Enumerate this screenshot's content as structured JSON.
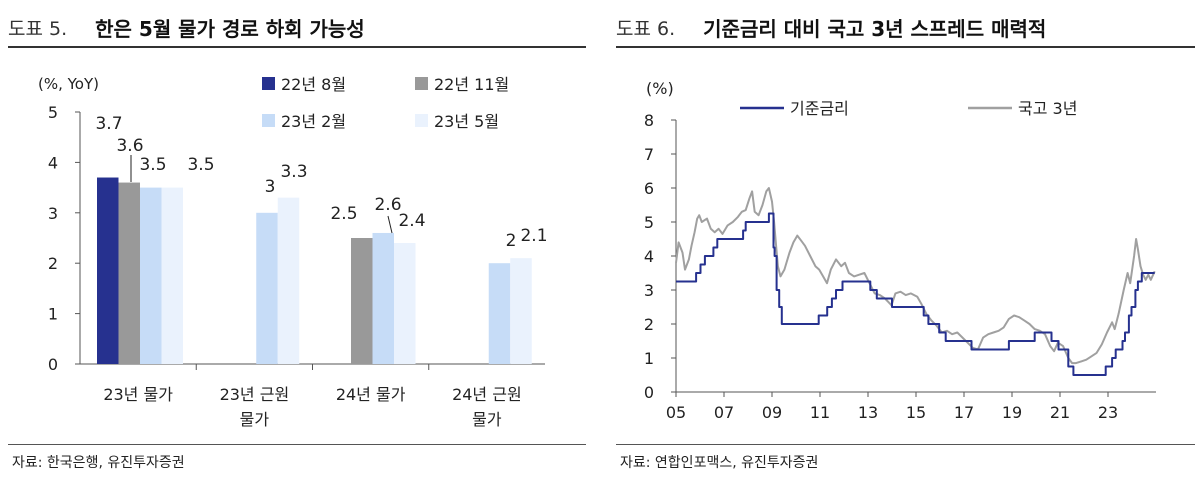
{
  "left": {
    "fig_num": "도표 5.",
    "title": "한은 5월 물가 경로 하회 가능성",
    "source": "자료: 한국은행, 유진투자증권"
  },
  "right": {
    "fig_num": "도표 6.",
    "title": "기준금리 대비 국고 3년 스프레드 매력적",
    "source": "자료: 연합인포맥스, 유진투자증권"
  },
  "chart_data": [
    {
      "type": "bar",
      "unit_label": "(%, YoY)",
      "categories": [
        [
          "23년 물가"
        ],
        [
          "23년 근원",
          "물가"
        ],
        [
          "24년 물가"
        ],
        [
          "24년 근원",
          "물가"
        ]
      ],
      "series": [
        {
          "name": "22년 8월",
          "color": "#26318f",
          "values": [
            3.7,
            null,
            null,
            null
          ],
          "labels": [
            "3.7",
            null,
            null,
            null
          ]
        },
        {
          "name": "22년 11월",
          "color": "#999999",
          "values": [
            3.6,
            null,
            2.5,
            null
          ],
          "labels": [
            "3.6",
            null,
            "2.5",
            null
          ]
        },
        {
          "name": "23년 2월",
          "color": "#c6dcf7",
          "values": [
            3.5,
            3.0,
            2.6,
            2.0
          ],
          "labels": [
            "3.5",
            "3",
            "2.6",
            "2"
          ]
        },
        {
          "name": "23년 5월",
          "color": "#eaf2fd",
          "values": [
            3.5,
            3.3,
            2.4,
            2.1
          ],
          "labels": [
            "3.5",
            "3.3",
            "2.4",
            "2.1"
          ]
        }
      ],
      "ylim": [
        0,
        5
      ],
      "yticks": [
        "0",
        "1",
        "2",
        "3",
        "4",
        "5"
      ],
      "legend_position": "top-right",
      "grid": false
    },
    {
      "type": "line",
      "unit_label": "(%)",
      "ylim": [
        0,
        8
      ],
      "yticks": [
        "0",
        "1",
        "2",
        "3",
        "4",
        "5",
        "6",
        "7",
        "8"
      ],
      "xlim": [
        2005,
        2023.6
      ],
      "xticks": [
        "05",
        "07",
        "09",
        "11",
        "13",
        "15",
        "17",
        "19",
        "21",
        "23"
      ],
      "legend_position": "top-left",
      "grid": false,
      "series": [
        {
          "name": "기준금리",
          "color": "#26318f",
          "points": [
            [
              2005.0,
              3.25
            ],
            [
              2005.78,
              3.25
            ],
            [
              2005.78,
              3.5
            ],
            [
              2005.95,
              3.5
            ],
            [
              2005.95,
              3.75
            ],
            [
              2006.12,
              3.75
            ],
            [
              2006.12,
              4.0
            ],
            [
              2006.45,
              4.0
            ],
            [
              2006.45,
              4.25
            ],
            [
              2006.6,
              4.25
            ],
            [
              2006.6,
              4.5
            ],
            [
              2007.6,
              4.5
            ],
            [
              2007.6,
              4.75
            ],
            [
              2007.7,
              4.75
            ],
            [
              2007.7,
              5.0
            ],
            [
              2008.6,
              5.0
            ],
            [
              2008.6,
              5.25
            ],
            [
              2008.78,
              5.25
            ],
            [
              2008.78,
              4.25
            ],
            [
              2008.82,
              4.25
            ],
            [
              2008.82,
              4.0
            ],
            [
              2008.9,
              4.0
            ],
            [
              2008.9,
              3.0
            ],
            [
              2009.0,
              3.0
            ],
            [
              2009.0,
              2.5
            ],
            [
              2009.1,
              2.5
            ],
            [
              2009.1,
              2.0
            ],
            [
              2010.53,
              2.0
            ],
            [
              2010.53,
              2.25
            ],
            [
              2010.86,
              2.25
            ],
            [
              2010.86,
              2.5
            ],
            [
              2011.04,
              2.5
            ],
            [
              2011.04,
              2.75
            ],
            [
              2011.2,
              2.75
            ],
            [
              2011.2,
              3.0
            ],
            [
              2011.45,
              3.0
            ],
            [
              2011.45,
              3.25
            ],
            [
              2012.53,
              3.25
            ],
            [
              2012.53,
              3.0
            ],
            [
              2012.78,
              3.0
            ],
            [
              2012.78,
              2.75
            ],
            [
              2013.37,
              2.75
            ],
            [
              2013.37,
              2.5
            ],
            [
              2014.6,
              2.5
            ],
            [
              2014.6,
              2.25
            ],
            [
              2014.78,
              2.25
            ],
            [
              2014.78,
              2.0
            ],
            [
              2015.2,
              2.0
            ],
            [
              2015.2,
              1.75
            ],
            [
              2015.45,
              1.75
            ],
            [
              2015.45,
              1.5
            ],
            [
              2016.45,
              1.5
            ],
            [
              2016.45,
              1.25
            ],
            [
              2017.9,
              1.25
            ],
            [
              2017.9,
              1.5
            ],
            [
              2018.9,
              1.5
            ],
            [
              2018.9,
              1.75
            ],
            [
              2019.55,
              1.75
            ],
            [
              2019.55,
              1.5
            ],
            [
              2019.82,
              1.5
            ],
            [
              2019.82,
              1.25
            ],
            [
              2020.2,
              1.25
            ],
            [
              2020.2,
              0.75
            ],
            [
              2020.4,
              0.75
            ],
            [
              2020.4,
              0.5
            ],
            [
              2021.65,
              0.5
            ],
            [
              2021.65,
              0.75
            ],
            [
              2021.9,
              0.75
            ],
            [
              2021.9,
              1.0
            ],
            [
              2022.04,
              1.0
            ],
            [
              2022.04,
              1.25
            ],
            [
              2022.3,
              1.25
            ],
            [
              2022.3,
              1.5
            ],
            [
              2022.4,
              1.5
            ],
            [
              2022.4,
              1.75
            ],
            [
              2022.55,
              1.75
            ],
            [
              2022.55,
              2.25
            ],
            [
              2022.65,
              2.25
            ],
            [
              2022.65,
              2.5
            ],
            [
              2022.8,
              2.5
            ],
            [
              2022.8,
              3.0
            ],
            [
              2022.9,
              3.0
            ],
            [
              2022.9,
              3.25
            ],
            [
              2023.05,
              3.25
            ],
            [
              2023.05,
              3.5
            ],
            [
              2023.55,
              3.5
            ]
          ]
        },
        {
          "name": "국고 3년",
          "color": "#a0a0a0",
          "points": [
            [
              2005.0,
              3.8
            ],
            [
              2005.1,
              4.4
            ],
            [
              2005.25,
              4.1
            ],
            [
              2005.35,
              3.6
            ],
            [
              2005.5,
              3.9
            ],
            [
              2005.6,
              4.3
            ],
            [
              2005.72,
              4.7
            ],
            [
              2005.82,
              5.1
            ],
            [
              2005.9,
              5.2
            ],
            [
              2006.0,
              5.0
            ],
            [
              2006.2,
              5.1
            ],
            [
              2006.35,
              4.8
            ],
            [
              2006.5,
              4.7
            ],
            [
              2006.65,
              4.8
            ],
            [
              2006.8,
              4.65
            ],
            [
              2007.0,
              4.9
            ],
            [
              2007.2,
              5.0
            ],
            [
              2007.4,
              5.15
            ],
            [
              2007.55,
              5.3
            ],
            [
              2007.7,
              5.35
            ],
            [
              2007.85,
              5.7
            ],
            [
              2007.95,
              5.9
            ],
            [
              2008.05,
              5.3
            ],
            [
              2008.2,
              5.2
            ],
            [
              2008.35,
              5.5
            ],
            [
              2008.5,
              5.9
            ],
            [
              2008.6,
              6.0
            ],
            [
              2008.72,
              5.6
            ],
            [
              2008.8,
              5.0
            ],
            [
              2008.88,
              4.3
            ],
            [
              2008.95,
              3.7
            ],
            [
              2009.05,
              3.4
            ],
            [
              2009.2,
              3.6
            ],
            [
              2009.4,
              4.1
            ],
            [
              2009.55,
              4.4
            ],
            [
              2009.7,
              4.6
            ],
            [
              2009.85,
              4.45
            ],
            [
              2010.0,
              4.3
            ],
            [
              2010.2,
              4.0
            ],
            [
              2010.4,
              3.7
            ],
            [
              2010.55,
              3.6
            ],
            [
              2010.7,
              3.4
            ],
            [
              2010.85,
              3.2
            ],
            [
              2011.0,
              3.6
            ],
            [
              2011.2,
              3.9
            ],
            [
              2011.4,
              3.7
            ],
            [
              2011.55,
              3.8
            ],
            [
              2011.7,
              3.5
            ],
            [
              2011.9,
              3.4
            ],
            [
              2012.1,
              3.45
            ],
            [
              2012.3,
              3.5
            ],
            [
              2012.5,
              3.2
            ],
            [
              2012.7,
              2.9
            ],
            [
              2012.9,
              2.85
            ],
            [
              2013.1,
              2.75
            ],
            [
              2013.35,
              2.55
            ],
            [
              2013.5,
              2.9
            ],
            [
              2013.7,
              2.95
            ],
            [
              2013.9,
              2.85
            ],
            [
              2014.1,
              2.9
            ],
            [
              2014.35,
              2.8
            ],
            [
              2014.5,
              2.6
            ],
            [
              2014.7,
              2.3
            ],
            [
              2014.9,
              2.1
            ],
            [
              2015.1,
              1.95
            ],
            [
              2015.3,
              1.75
            ],
            [
              2015.5,
              1.8
            ],
            [
              2015.7,
              1.7
            ],
            [
              2015.9,
              1.75
            ],
            [
              2016.1,
              1.6
            ],
            [
              2016.3,
              1.45
            ],
            [
              2016.5,
              1.3
            ],
            [
              2016.7,
              1.25
            ],
            [
              2016.9,
              1.6
            ],
            [
              2017.1,
              1.7
            ],
            [
              2017.3,
              1.75
            ],
            [
              2017.5,
              1.8
            ],
            [
              2017.7,
              1.9
            ],
            [
              2017.9,
              2.15
            ],
            [
              2018.1,
              2.25
            ],
            [
              2018.3,
              2.2
            ],
            [
              2018.5,
              2.1
            ],
            [
              2018.7,
              2.0
            ],
            [
              2018.9,
              1.85
            ],
            [
              2019.1,
              1.8
            ],
            [
              2019.3,
              1.7
            ],
            [
              2019.5,
              1.35
            ],
            [
              2019.65,
              1.2
            ],
            [
              2019.8,
              1.45
            ],
            [
              2020.0,
              1.35
            ],
            [
              2020.2,
              1.0
            ],
            [
              2020.35,
              0.85
            ],
            [
              2020.5,
              0.85
            ],
            [
              2020.7,
              0.9
            ],
            [
              2020.9,
              0.95
            ],
            [
              2021.1,
              1.05
            ],
            [
              2021.3,
              1.15
            ],
            [
              2021.5,
              1.4
            ],
            [
              2021.7,
              1.75
            ],
            [
              2021.9,
              2.05
            ],
            [
              2022.0,
              1.85
            ],
            [
              2022.15,
              2.3
            ],
            [
              2022.35,
              3.0
            ],
            [
              2022.5,
              3.5
            ],
            [
              2022.6,
              3.2
            ],
            [
              2022.75,
              4.0
            ],
            [
              2022.83,
              4.5
            ],
            [
              2022.9,
              4.2
            ],
            [
              2023.0,
              3.7
            ],
            [
              2023.1,
              3.45
            ],
            [
              2023.2,
              3.3
            ],
            [
              2023.3,
              3.45
            ],
            [
              2023.4,
              3.3
            ],
            [
              2023.55,
              3.55
            ]
          ]
        }
      ]
    }
  ]
}
